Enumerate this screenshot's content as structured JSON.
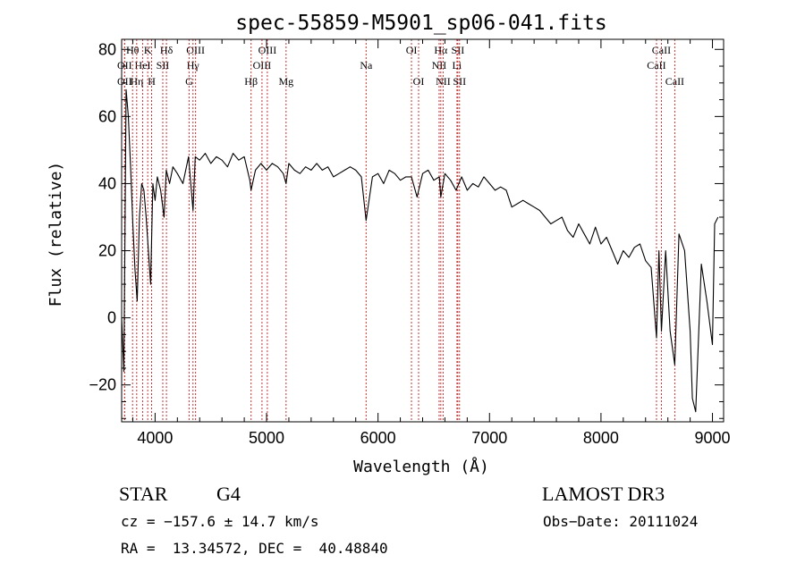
{
  "chart_data": {
    "type": "line",
    "title": "spec-55859-M5901_sp06-041.fits",
    "xlabel": "Wavelength (Å)",
    "ylabel": "Flux (relative)",
    "xlim": [
      3700,
      9100
    ],
    "ylim": [
      -31,
      83
    ],
    "xticks": [
      4000,
      5000,
      6000,
      7000,
      8000,
      9000
    ],
    "yticks": [
      -20,
      0,
      20,
      40,
      60,
      80
    ],
    "series": [
      {
        "name": "flux",
        "x": [
          3700,
          3720,
          3740,
          3760,
          3780,
          3800,
          3820,
          3840,
          3860,
          3880,
          3900,
          3920,
          3940,
          3960,
          3980,
          4000,
          4020,
          4050,
          4080,
          4100,
          4130,
          4160,
          4200,
          4250,
          4300,
          4340,
          4360,
          4400,
          4450,
          4500,
          4550,
          4600,
          4650,
          4700,
          4750,
          4800,
          4850,
          4861,
          4900,
          4950,
          5000,
          5050,
          5100,
          5150,
          5175,
          5200,
          5250,
          5300,
          5350,
          5400,
          5450,
          5500,
          5550,
          5600,
          5650,
          5700,
          5750,
          5800,
          5850,
          5893,
          5950,
          6000,
          6050,
          6100,
          6150,
          6200,
          6250,
          6300,
          6350,
          6400,
          6450,
          6500,
          6550,
          6563,
          6600,
          6650,
          6700,
          6750,
          6800,
          6850,
          6900,
          6950,
          7000,
          7050,
          7100,
          7150,
          7200,
          7250,
          7300,
          7350,
          7400,
          7450,
          7500,
          7550,
          7600,
          7650,
          7700,
          7750,
          7800,
          7850,
          7900,
          7950,
          8000,
          8050,
          8100,
          8150,
          8200,
          8250,
          8300,
          8350,
          8400,
          8450,
          8498,
          8520,
          8542,
          8580,
          8620,
          8662,
          8700,
          8750,
          8800,
          8820,
          8850,
          8900,
          8950,
          9000,
          9020,
          9050
        ],
        "y": [
          0,
          -16,
          68,
          60,
          45,
          28,
          14,
          5,
          30,
          40,
          38,
          30,
          20,
          10,
          40,
          35,
          42,
          38,
          30,
          44,
          40,
          45,
          43,
          40,
          48,
          32,
          48,
          47,
          49,
          46,
          48,
          47,
          45,
          49,
          47,
          48,
          41,
          38,
          44,
          46,
          44,
          46,
          45,
          43,
          40,
          46,
          44,
          43,
          45,
          44,
          46,
          44,
          45,
          42,
          43,
          44,
          45,
          44,
          42,
          29,
          42,
          43,
          40,
          44,
          43,
          41,
          42,
          42,
          36,
          43,
          44,
          41,
          42,
          36,
          43,
          41,
          38,
          42,
          38,
          40,
          39,
          42,
          40,
          38,
          39,
          38,
          33,
          34,
          35,
          34,
          33,
          32,
          30,
          28,
          29,
          30,
          26,
          24,
          28,
          25,
          22,
          27,
          22,
          24,
          20,
          16,
          20,
          18,
          21,
          22,
          17,
          15,
          -6,
          20,
          -4,
          20,
          -4,
          -14,
          25,
          20,
          -4,
          -24,
          -28,
          16,
          5,
          -8,
          28,
          30
        ]
      }
    ],
    "line_markers": [
      {
        "label": "Hθ",
        "x": 3798,
        "row": 0
      },
      {
        "label": "OII",
        "x": 3727,
        "row": 1
      },
      {
        "label": "OII",
        "x": 3727,
        "row": 2
      },
      {
        "label": "K",
        "x": 3934,
        "row": 0
      },
      {
        "label": "HeI",
        "x": 3889,
        "row": 1
      },
      {
        "label": "Hη",
        "x": 3835,
        "row": 2
      },
      {
        "label": "Hδ",
        "x": 4102,
        "row": 0
      },
      {
        "label": "SII",
        "x": 4069,
        "row": 1
      },
      {
        "label": "H",
        "x": 3969,
        "row": 2
      },
      {
        "label": "OIII",
        "x": 4363,
        "row": 0
      },
      {
        "label": "Hγ",
        "x": 4340,
        "row": 1
      },
      {
        "label": "G",
        "x": 4305,
        "row": 2
      },
      {
        "label": "OIII",
        "x": 5007,
        "row": 0
      },
      {
        "label": "OIII",
        "x": 4959,
        "row": 1
      },
      {
        "label": "Hβ",
        "x": 4861,
        "row": 2
      },
      {
        "label": "Mg",
        "x": 5175,
        "row": 2
      },
      {
        "label": "Na",
        "x": 5893,
        "row": 1
      },
      {
        "label": "OI",
        "x": 6300,
        "row": 0
      },
      {
        "label": "OI",
        "x": 6364,
        "row": 2
      },
      {
        "label": "Hα",
        "x": 6563,
        "row": 0
      },
      {
        "label": "SII",
        "x": 6716,
        "row": 0
      },
      {
        "label": "NII",
        "x": 6548,
        "row": 1
      },
      {
        "label": "Li",
        "x": 6708,
        "row": 1
      },
      {
        "label": "NII",
        "x": 6584,
        "row": 2
      },
      {
        "label": "SII",
        "x": 6731,
        "row": 2
      },
      {
        "label": "CaII",
        "x": 8542,
        "row": 0
      },
      {
        "label": "CaII",
        "x": 8498,
        "row": 1
      },
      {
        "label": "CaII",
        "x": 8662,
        "row": 2
      }
    ]
  },
  "info": {
    "object_class": "STAR",
    "subclass": "G4",
    "survey": "LAMOST DR3",
    "redshift": "cz = −157.6 ± 14.7 km/s",
    "obs_date": "Obs−Date: 20111024",
    "coords": "RA =  13.34572, DEC =  40.48840"
  }
}
